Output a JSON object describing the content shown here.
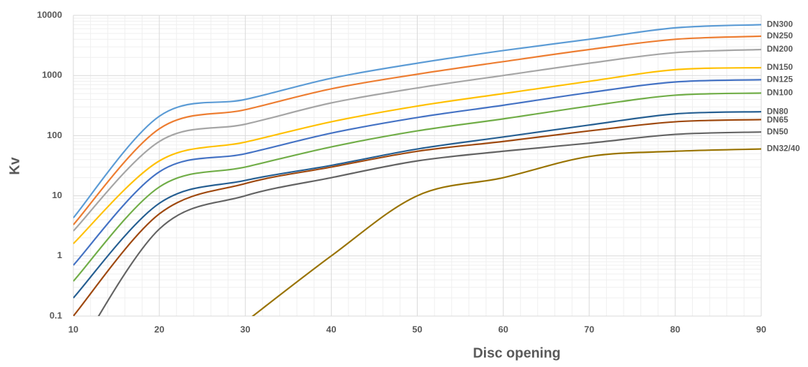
{
  "chart_data": {
    "type": "line",
    "x_label": "Disc opening",
    "y_label": "Kv",
    "log_y": true,
    "grid": true,
    "x": [
      10,
      20,
      30,
      40,
      50,
      60,
      70,
      80,
      90
    ],
    "xlim": [
      10,
      90
    ],
    "xticks": [
      10,
      20,
      30,
      40,
      50,
      60,
      70,
      80,
      90
    ],
    "ylim": [
      0.1,
      10000
    ],
    "yticks": [
      0.1,
      1,
      10,
      100,
      1000,
      10000
    ],
    "series": [
      {
        "name": "DN300",
        "color": "#5b9bd5",
        "values": [
          4.3,
          210,
          400,
          900,
          1600,
          2600,
          4000,
          6200,
          7000
        ]
      },
      {
        "name": "DN250",
        "color": "#ed7d31",
        "values": [
          3.3,
          130,
          270,
          600,
          1050,
          1700,
          2700,
          4000,
          4500
        ]
      },
      {
        "name": "DN200",
        "color": "#a5a5a5",
        "values": [
          2.6,
          80,
          155,
          350,
          620,
          1000,
          1600,
          2400,
          2700
        ]
      },
      {
        "name": "DN150",
        "color": "#ffc000",
        "values": [
          1.6,
          38,
          78,
          170,
          310,
          500,
          800,
          1250,
          1350
        ]
      },
      {
        "name": "DN125",
        "color": "#4472c4",
        "values": [
          0.7,
          25,
          50,
          110,
          200,
          320,
          520,
          780,
          850
        ]
      },
      {
        "name": "DN100",
        "color": "#70ad47",
        "values": [
          0.38,
          14,
          30,
          65,
          120,
          190,
          310,
          470,
          510
        ]
      },
      {
        "name": "DN80",
        "color": "#255e91",
        "values": [
          0.2,
          7.5,
          18,
          32,
          60,
          95,
          150,
          230,
          250
        ]
      },
      {
        "name": "DN65",
        "color": "#9e480e",
        "values": [
          0.1,
          5,
          16,
          30,
          55,
          80,
          120,
          170,
          185
        ]
      },
      {
        "name": "DN50",
        "color": "#636363",
        "values": [
          0.02,
          2.8,
          10,
          20,
          38,
          55,
          75,
          105,
          115
        ]
      },
      {
        "name": "DN32/40",
        "color": "#997300",
        "values": [
          null,
          null,
          0.08,
          1,
          10,
          20,
          45,
          55,
          60
        ]
      }
    ]
  }
}
